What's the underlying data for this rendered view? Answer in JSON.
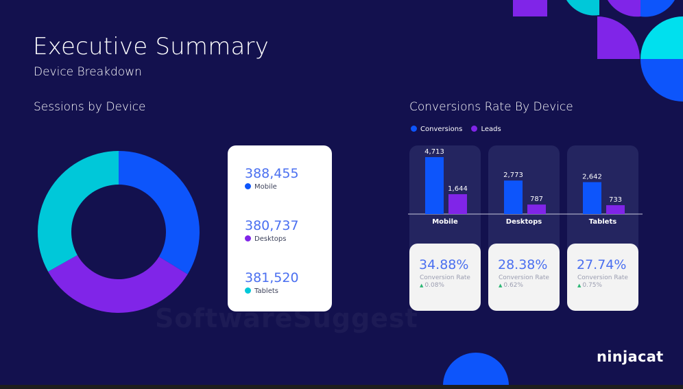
{
  "header": {
    "title": "Executive Summary",
    "subtitle": "Device Breakdown"
  },
  "colors": {
    "background": "#13114e",
    "blue": "#0d55fb",
    "purple": "#8025e8",
    "cyan": "#00c8d9",
    "stat_text": "#4a6ff0",
    "positive": "#2bb673"
  },
  "chart_data": [
    {
      "type": "pie",
      "title": "Sessions by Device",
      "categories": [
        "Mobile",
        "Desktops",
        "Tablets"
      ],
      "values": [
        388455,
        380737,
        381520
      ],
      "value_labels": [
        "388,455",
        "380,737",
        "381,520"
      ],
      "colors": [
        "#0d55fb",
        "#8025e8",
        "#00c8d9"
      ]
    },
    {
      "type": "bar",
      "title": "Conversions Rate By Device",
      "categories": [
        "Mobile",
        "Desktops",
        "Tablets"
      ],
      "series": [
        {
          "name": "Conversions",
          "values": [
            4713,
            2773,
            2642
          ],
          "value_labels": [
            "4,713",
            "2,773",
            "2,642"
          ],
          "color": "#0d55fb"
        },
        {
          "name": "Leads",
          "values": [
            1644,
            787,
            733
          ],
          "value_labels": [
            "1,644",
            "787",
            "733"
          ],
          "color": "#8025e8"
        }
      ],
      "ylim": [
        0,
        4713
      ],
      "conversion_rates": [
        {
          "value": "34.88%",
          "label": "Conversion Rate",
          "change": "0.08%"
        },
        {
          "value": "28.38%",
          "label": "Conversion Rate",
          "change": "0.62%"
        },
        {
          "value": "27.74%",
          "label": "Conversion Rate",
          "change": "0.75%"
        }
      ]
    }
  ],
  "footer": {
    "brand": "ninjacat",
    "watermark": "SoftwareSuggest"
  }
}
